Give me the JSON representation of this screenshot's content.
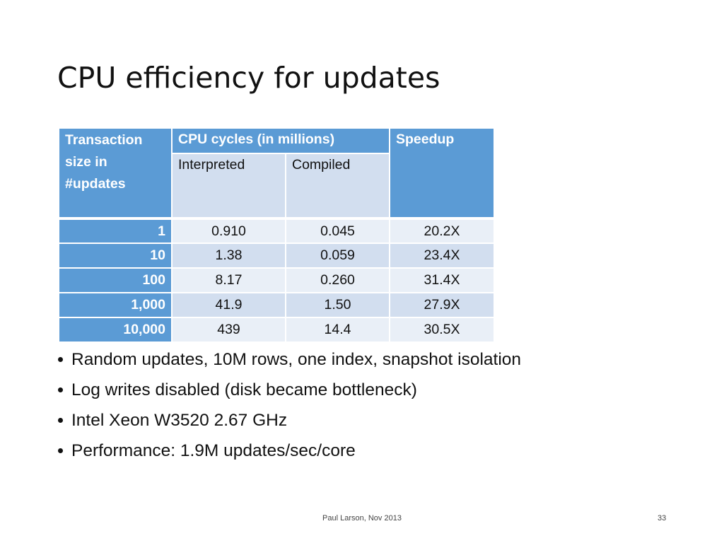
{
  "slide": {
    "title": "CPU efficiency for updates",
    "footer": "Paul Larson, Nov 2013",
    "page_number": "33"
  },
  "table": {
    "header": {
      "transaction_size": "Transaction size in #updates",
      "cpu_cycles": "CPU cycles (in millions)",
      "interpreted": "Interpreted",
      "compiled": "Compiled",
      "speedup": "Speedup"
    },
    "rows": [
      {
        "size": "1",
        "interpreted": "0.910",
        "compiled": "0.045",
        "speedup": "20.2X"
      },
      {
        "size": "10",
        "interpreted": "1.38",
        "compiled": "0.059",
        "speedup": "23.4X"
      },
      {
        "size": "100",
        "interpreted": "8.17",
        "compiled": "0.260",
        "speedup": "31.4X"
      },
      {
        "size": "1,000",
        "interpreted": "41.9",
        "compiled": "1.50",
        "speedup": "27.9X"
      },
      {
        "size": "10,000",
        "interpreted": "439",
        "compiled": "14.4",
        "speedup": "30.5X"
      }
    ]
  },
  "bullets": [
    "Random updates, 10M rows, one index, snapshot isolation",
    "Log writes disabled (disk became bottleneck)",
    "Intel Xeon W3520 2.67 GHz",
    "Performance: 1.9M updates/sec/core"
  ],
  "colors": {
    "header_blue": "#5b9bd5",
    "header_light": "#d2deef",
    "row_light": "#e9eff7"
  }
}
